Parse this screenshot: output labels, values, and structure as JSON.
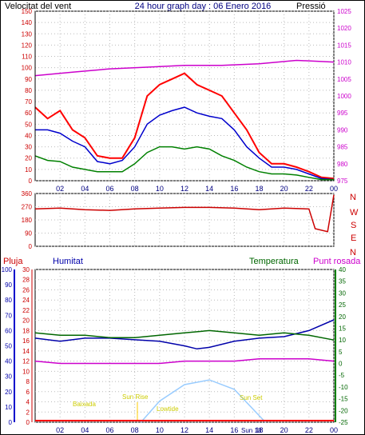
{
  "header": {
    "left": "Velocitat del vent",
    "center": "24 hour graph day : 06 Enero 2016",
    "right": "Pressió"
  },
  "panel2": {
    "compass": [
      "N",
      "W",
      "S",
      "E",
      "N"
    ]
  },
  "panel3": {
    "labels": {
      "pluja": "Pluja",
      "humitat": "Humitat",
      "temperatura": "Temperatura",
      "punt_rosada": "Punt rosada"
    },
    "annotations": {
      "baixada": "Baixada",
      "sun_rise": "Sun Rise",
      "lowtide": "Lowtide",
      "sun_set": "Sun Set",
      "sun_set_time": "Sun 18"
    }
  },
  "colors": {
    "wind_gust": "#ff0000",
    "wind_avg": "#0000cc",
    "wind_min": "#008000",
    "pressure": "#cc00cc",
    "wind_dir": "#cc0000",
    "humidity": "#0000aa",
    "temperature": "#006600",
    "dew_point": "#cc00cc",
    "rain": "#ff0000",
    "sun_arc": "#99ccff",
    "annotation": "#ffff00"
  },
  "chart_data": [
    {
      "type": "line",
      "x_ticks": [
        "02",
        "04",
        "06",
        "08",
        "10",
        "12",
        "14",
        "16",
        "18",
        "20",
        "22",
        "00"
      ],
      "y_ticks_left": [
        0,
        10,
        20,
        30,
        40,
        50,
        60,
        70,
        80,
        90,
        100,
        110,
        120,
        130,
        140,
        150
      ],
      "y_ticks_right": [
        975,
        980,
        985,
        990,
        995,
        1000,
        1005,
        1010,
        1015,
        1020,
        1025
      ],
      "ylim_left": [
        0,
        150
      ],
      "ylim_right": [
        975,
        1025
      ],
      "series": [
        {
          "color": "#ff0000",
          "axis": "left",
          "x": [
            0,
            1,
            2,
            3,
            4,
            5,
            6,
            7,
            8,
            9,
            10,
            11,
            12,
            13,
            14,
            15,
            16,
            17,
            18,
            19,
            20,
            21,
            22,
            23,
            24
          ],
          "values": [
            65,
            55,
            62,
            45,
            38,
            22,
            20,
            20,
            38,
            75,
            85,
            90,
            95,
            85,
            80,
            75,
            60,
            45,
            25,
            15,
            15,
            12,
            8,
            3,
            2
          ]
        },
        {
          "color": "#0000cc",
          "axis": "left",
          "x": [
            0,
            1,
            2,
            3,
            4,
            5,
            6,
            7,
            8,
            9,
            10,
            11,
            12,
            13,
            14,
            15,
            16,
            17,
            18,
            19,
            20,
            21,
            22,
            23,
            24
          ],
          "values": [
            45,
            45,
            42,
            35,
            30,
            17,
            15,
            18,
            30,
            50,
            58,
            62,
            65,
            60,
            57,
            55,
            45,
            30,
            20,
            12,
            12,
            10,
            6,
            2,
            1
          ]
        },
        {
          "color": "#008000",
          "axis": "left",
          "x": [
            0,
            1,
            2,
            3,
            4,
            5,
            6,
            7,
            8,
            9,
            10,
            11,
            12,
            13,
            14,
            15,
            16,
            17,
            18,
            19,
            20,
            21,
            22,
            23,
            24
          ],
          "values": [
            22,
            18,
            17,
            12,
            10,
            8,
            8,
            8,
            15,
            25,
            30,
            30,
            28,
            30,
            28,
            22,
            18,
            12,
            8,
            6,
            6,
            5,
            3,
            1,
            1
          ]
        },
        {
          "color": "#cc00cc",
          "axis": "right",
          "x": [
            0,
            3,
            6,
            9,
            12,
            15,
            18,
            21,
            24
          ],
          "values": [
            1006,
            1007,
            1008,
            1008.5,
            1009,
            1009,
            1009.5,
            1010.5,
            1010
          ]
        }
      ]
    },
    {
      "type": "line",
      "y_ticks": [
        0,
        90,
        180,
        270,
        360
      ],
      "ylim": [
        0,
        360
      ],
      "series": [
        {
          "color": "#cc0000",
          "x": [
            0,
            2,
            4,
            6,
            8,
            10,
            12,
            14,
            16,
            18,
            20,
            22,
            22.5,
            23.5,
            24
          ],
          "values": [
            255,
            260,
            250,
            245,
            255,
            260,
            265,
            265,
            260,
            250,
            260,
            255,
            120,
            100,
            350
          ]
        }
      ]
    },
    {
      "type": "line",
      "x_ticks": [
        "02",
        "04",
        "06",
        "08",
        "10",
        "12",
        "14",
        "16",
        "18",
        "20",
        "22",
        "00"
      ],
      "y_ticks_left_outer": [
        0,
        10,
        20,
        30,
        40,
        50,
        60,
        70,
        80,
        90,
        100
      ],
      "y_ticks_left_inner": [
        0,
        2,
        4,
        6,
        8,
        10,
        12,
        14,
        16,
        18,
        20,
        22,
        24,
        26,
        28,
        30
      ],
      "y_ticks_right": [
        -25,
        -20,
        -15,
        -10,
        -5,
        0,
        5,
        10,
        15,
        20,
        25,
        30,
        35,
        40
      ],
      "ylim_outer": [
        0,
        100
      ],
      "ylim_temp": [
        -25,
        40
      ],
      "series": [
        {
          "color": "#0000aa",
          "axis": "humidity",
          "x": [
            0,
            2,
            4,
            6,
            8,
            10,
            12,
            13,
            14,
            16,
            18,
            20,
            22,
            24
          ],
          "values": [
            55,
            53,
            55,
            55,
            54,
            53,
            50,
            48,
            49,
            53,
            55,
            56,
            60,
            67
          ]
        },
        {
          "color": "#006600",
          "axis": "temperature",
          "x": [
            0,
            2,
            4,
            6,
            8,
            10,
            12,
            14,
            16,
            18,
            20,
            22,
            24
          ],
          "values": [
            13,
            12,
            12,
            11,
            11,
            12,
            13,
            14,
            13,
            12,
            13,
            12,
            10
          ]
        },
        {
          "color": "#cc00cc",
          "axis": "temperature",
          "x": [
            0,
            2,
            4,
            6,
            8,
            10,
            12,
            14,
            16,
            18,
            20,
            22,
            24
          ],
          "values": [
            1,
            0,
            0,
            0,
            0,
            0,
            1,
            1,
            1,
            2,
            2,
            2,
            1
          ]
        },
        {
          "color": "#99ccff",
          "axis": "temperature",
          "x": [
            8.5,
            10,
            12,
            14,
            16,
            18.5
          ],
          "values": [
            -25,
            -16,
            -9,
            -7,
            -11,
            -25
          ]
        }
      ]
    }
  ]
}
